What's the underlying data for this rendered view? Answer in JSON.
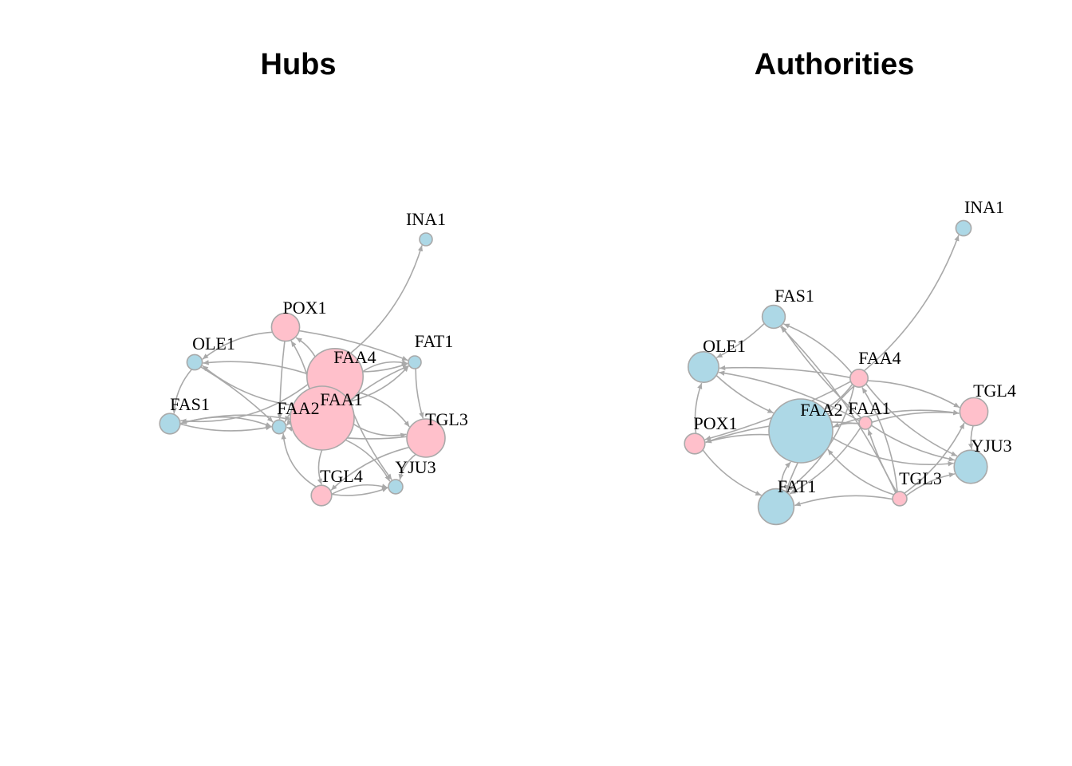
{
  "colors": {
    "pink": "#ffc0cb",
    "lightblue": "#add8e6",
    "edge": "#a9a9a9",
    "node_border": "#a9a9a9"
  },
  "panels": [
    {
      "title": "Hubs",
      "nodes": [
        {
          "name": "INA1",
          "color": "lightblue",
          "score": 0.0
        },
        {
          "name": "POX1",
          "color": "pink",
          "score": 0.3
        },
        {
          "name": "OLE1",
          "color": "lightblue",
          "score": 0.05
        },
        {
          "name": "FAT1",
          "color": "lightblue",
          "score": 0.0
        },
        {
          "name": "FAA4",
          "color": "pink",
          "score": 0.85
        },
        {
          "name": "FAS1",
          "color": "lightblue",
          "score": 0.15
        },
        {
          "name": "FAA2",
          "color": "lightblue",
          "score": 0.02
        },
        {
          "name": "FAA1",
          "color": "pink",
          "score": 1.0
        },
        {
          "name": "TGL3",
          "color": "pink",
          "score": 0.5
        },
        {
          "name": "TGL4",
          "color": "pink",
          "score": 0.15
        },
        {
          "name": "YJU3",
          "color": "lightblue",
          "score": 0.03
        }
      ]
    },
    {
      "title": "Authorities",
      "nodes": [
        {
          "name": "INA1",
          "color": "lightblue",
          "score": 0.05
        },
        {
          "name": "FAS1",
          "color": "lightblue",
          "score": 0.2
        },
        {
          "name": "OLE1",
          "color": "lightblue",
          "score": 0.35
        },
        {
          "name": "FAA4",
          "color": "pink",
          "score": 0.1
        },
        {
          "name": "TGL4",
          "color": "pink",
          "score": 0.3
        },
        {
          "name": "POX1",
          "color": "pink",
          "score": 0.15
        },
        {
          "name": "FAA2",
          "color": "lightblue",
          "score": 1.0
        },
        {
          "name": "FAA1",
          "color": "pink",
          "score": 0.0
        },
        {
          "name": "YJU3",
          "color": "lightblue",
          "score": 0.4
        },
        {
          "name": "FAT1",
          "color": "lightblue",
          "score": 0.45
        },
        {
          "name": "TGL3",
          "color": "pink",
          "score": 0.03
        }
      ]
    }
  ]
}
